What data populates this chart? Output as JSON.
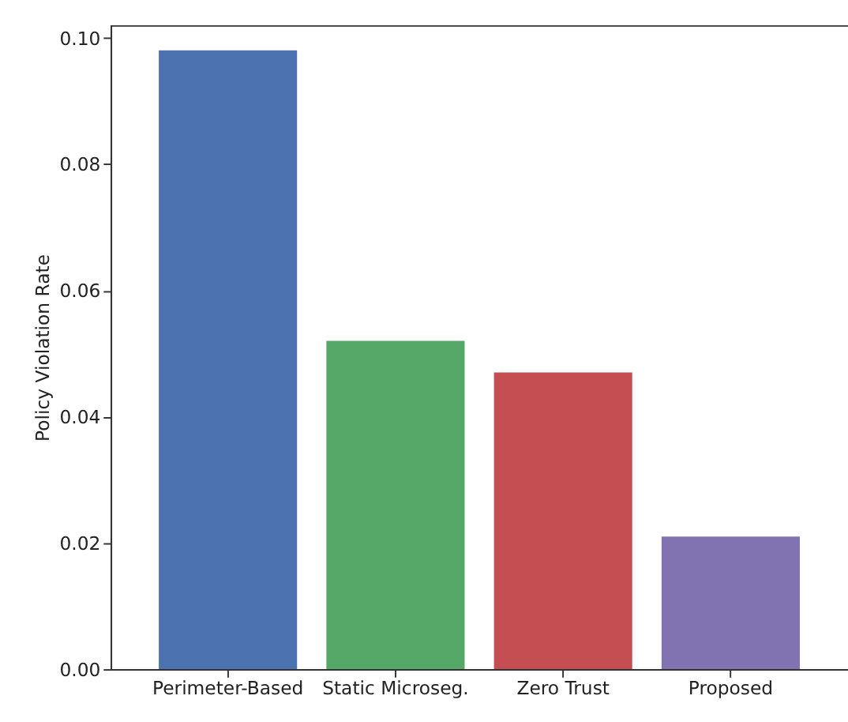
{
  "chart_data": {
    "type": "bar",
    "ylabel": "Policy Violation Rate",
    "categories": [
      "Perimeter-Based",
      "Static Microseg.",
      "Zero Trust",
      "Proposed"
    ],
    "values": [
      0.098,
      0.052,
      0.047,
      0.021
    ],
    "colors": [
      "#4c72b0",
      "#55a868",
      "#c44e52",
      "#8172b2"
    ],
    "ylim": [
      0,
      0.102
    ],
    "yticks": [
      {
        "value": 0,
        "label": "0.00"
      },
      0.02,
      0.04,
      0.06,
      0.08,
      {
        "value": 0.1,
        "label": "0.10"
      }
    ],
    "grid": false
  }
}
